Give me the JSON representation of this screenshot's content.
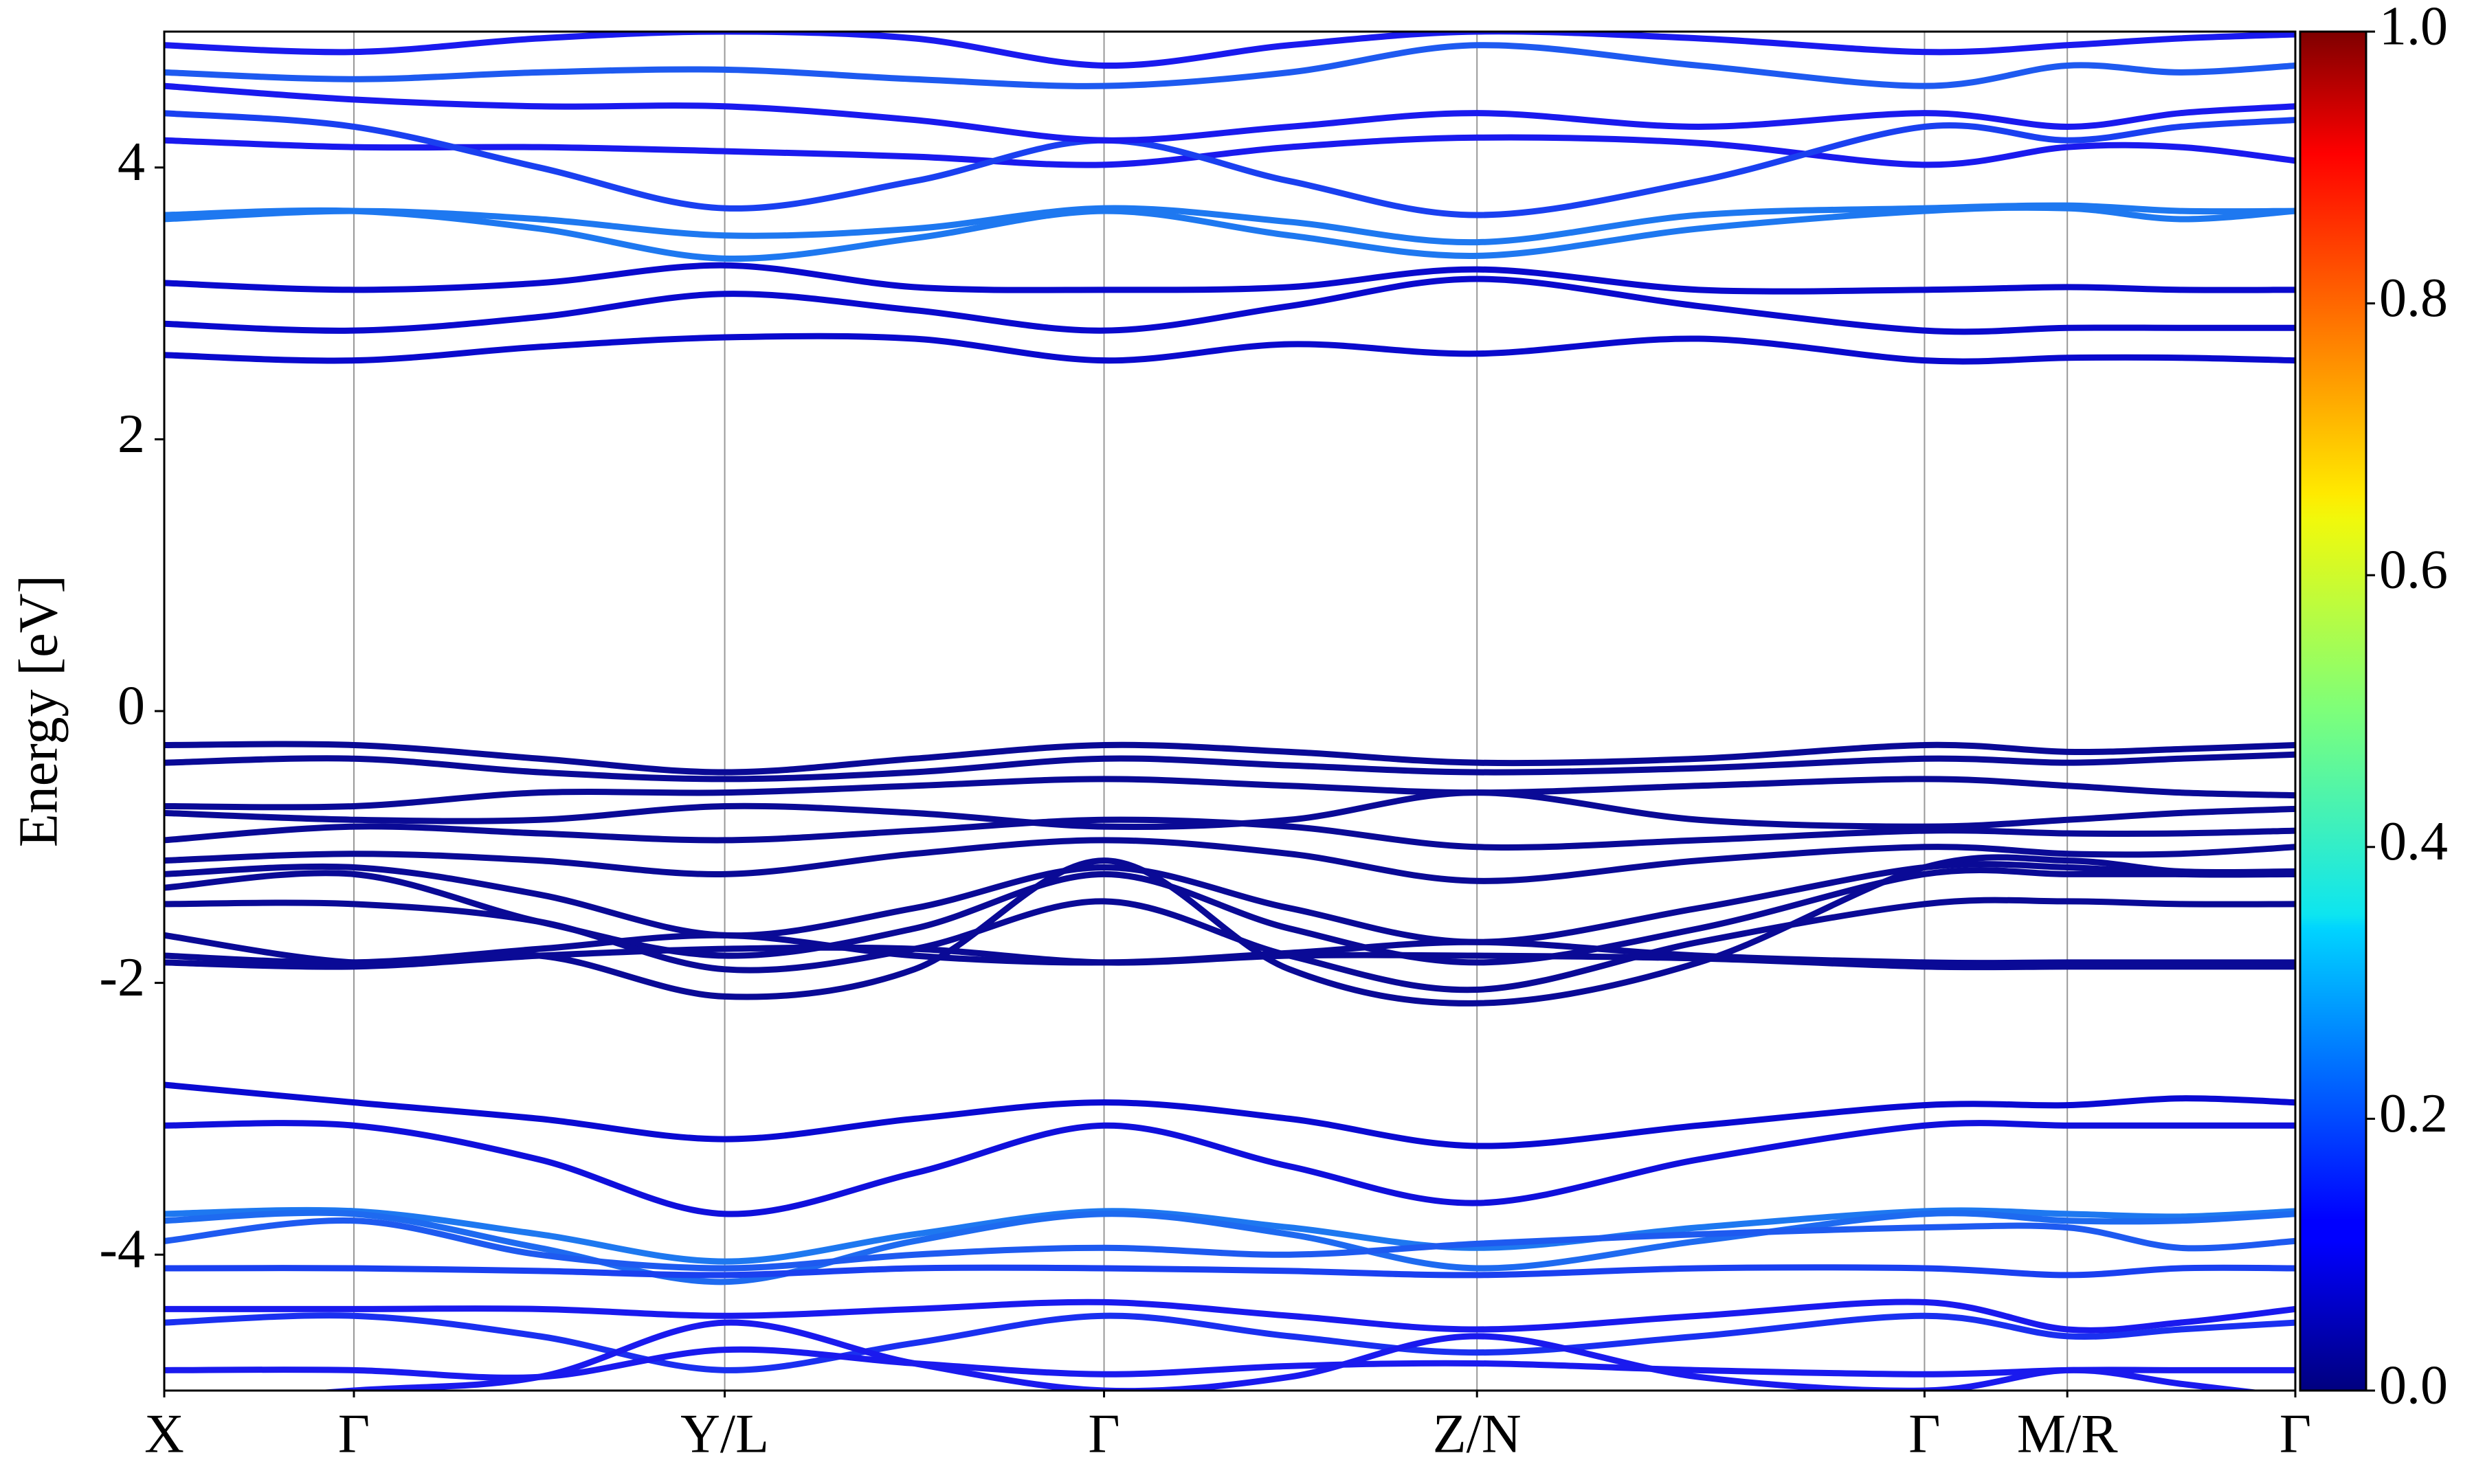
{
  "chart_data": {
    "type": "line",
    "y_label": "Energy [eV]",
    "x": [
      0,
      0.089,
      0.176,
      0.263,
      0.352,
      0.441,
      0.528,
      0.616,
      0.72,
      0.826,
      0.893,
      0.946,
      1.0
    ],
    "xlim": [
      0,
      1
    ],
    "xticks": [
      {
        "value": 0,
        "label": "X"
      },
      {
        "value": 0.089,
        "label": "Γ"
      },
      {
        "value": 0.263,
        "label": "Y/L"
      },
      {
        "value": 0.441,
        "label": "Γ"
      },
      {
        "value": 0.616,
        "label": "Z/N"
      },
      {
        "value": 0.826,
        "label": "Γ"
      },
      {
        "value": 0.893,
        "label": "M/R"
      },
      {
        "value": 1.0,
        "label": "Γ"
      }
    ],
    "ylim": [
      -5,
      5
    ],
    "yticks": [
      -4,
      -2,
      0,
      2,
      4
    ],
    "grid": "x",
    "colorbar": {
      "colormap": "jet",
      "lim": [
        0,
        1
      ],
      "ticks": [
        {
          "value": 0,
          "label": "0.0"
        },
        0.2,
        0.4,
        0.6,
        0.8,
        {
          "value": 1,
          "label": "1.0"
        }
      ]
    },
    "series": [
      {
        "color": "#0a0acd",
        "values": [
          2.62,
          2.58,
          2.68,
          2.75,
          2.74,
          2.58,
          2.7,
          2.63,
          2.74,
          2.58,
          2.6,
          2.6,
          2.58
        ]
      },
      {
        "color": "#0a0acd",
        "values": [
          2.85,
          2.8,
          2.9,
          3.07,
          2.95,
          2.8,
          2.98,
          3.18,
          2.98,
          2.8,
          2.82,
          2.82,
          2.82
        ]
      },
      {
        "color": "#0a0acd",
        "values": [
          3.15,
          3.1,
          3.15,
          3.28,
          3.12,
          3.1,
          3.12,
          3.25,
          3.1,
          3.1,
          3.12,
          3.1,
          3.1
        ]
      },
      {
        "color": "#1e78f0",
        "values": [
          3.65,
          3.68,
          3.55,
          3.33,
          3.48,
          3.68,
          3.5,
          3.35,
          3.55,
          3.68,
          3.7,
          3.62,
          3.68
        ]
      },
      {
        "color": "#1e78f0",
        "values": [
          3.62,
          3.68,
          3.62,
          3.5,
          3.55,
          3.7,
          3.6,
          3.45,
          3.65,
          3.7,
          3.72,
          3.68,
          3.68
        ]
      },
      {
        "color": "#1a1aee",
        "values": [
          4.2,
          4.15,
          4.15,
          4.12,
          4.08,
          4.02,
          4.15,
          4.22,
          4.18,
          4.02,
          4.15,
          4.15,
          4.05
        ]
      },
      {
        "color": "#1a40f0",
        "values": [
          4.4,
          4.3,
          4.0,
          3.7,
          3.9,
          4.2,
          3.9,
          3.65,
          3.9,
          4.3,
          4.2,
          4.3,
          4.35
        ]
      },
      {
        "color": "#1a1aee",
        "values": [
          4.6,
          4.5,
          4.45,
          4.45,
          4.35,
          4.2,
          4.3,
          4.4,
          4.3,
          4.4,
          4.3,
          4.4,
          4.45
        ]
      },
      {
        "color": "#1e5af0",
        "values": [
          4.7,
          4.65,
          4.7,
          4.72,
          4.65,
          4.6,
          4.7,
          4.9,
          4.75,
          4.6,
          4.75,
          4.7,
          4.75
        ]
      },
      {
        "color": "#1a1aee",
        "values": [
          4.9,
          4.85,
          4.95,
          5.0,
          4.95,
          4.75,
          4.9,
          5.0,
          4.95,
          4.85,
          4.9,
          4.95,
          4.98
        ]
      },
      {
        "color": "#0a0a96",
        "values": [
          -0.25,
          -0.25,
          -0.35,
          -0.45,
          -0.35,
          -0.25,
          -0.3,
          -0.38,
          -0.35,
          -0.25,
          -0.3,
          -0.28,
          -0.25
        ]
      },
      {
        "color": "#0a0a96",
        "values": [
          -0.38,
          -0.35,
          -0.45,
          -0.5,
          -0.45,
          -0.35,
          -0.4,
          -0.45,
          -0.42,
          -0.35,
          -0.38,
          -0.35,
          -0.32
        ]
      },
      {
        "color": "#0a0a96",
        "values": [
          -0.7,
          -0.7,
          -0.6,
          -0.6,
          -0.55,
          -0.5,
          -0.55,
          -0.6,
          -0.55,
          -0.5,
          -0.55,
          -0.6,
          -0.62
        ]
      },
      {
        "color": "#0a0a96",
        "values": [
          -0.75,
          -0.8,
          -0.8,
          -0.7,
          -0.75,
          -0.85,
          -0.8,
          -0.6,
          -0.8,
          -0.85,
          -0.8,
          -0.75,
          -0.72
        ]
      },
      {
        "color": "#0a0a96",
        "values": [
          -0.95,
          -0.85,
          -0.9,
          -0.95,
          -0.88,
          -0.8,
          -0.85,
          -1.0,
          -0.95,
          -0.88,
          -0.9,
          -0.9,
          -0.88
        ]
      },
      {
        "color": "#0a0a96",
        "values": [
          -1.1,
          -1.05,
          -1.1,
          -1.2,
          -1.05,
          -0.95,
          -1.05,
          -1.25,
          -1.1,
          -1.0,
          -1.05,
          -1.05,
          -1.0
        ]
      },
      {
        "color": "#0a0a96",
        "values": [
          -1.2,
          -1.15,
          -1.35,
          -1.65,
          -1.45,
          -1.15,
          -1.45,
          -1.7,
          -1.45,
          -1.15,
          -1.15,
          -1.2,
          -1.2
        ]
      },
      {
        "color": "#0a0a96",
        "values": [
          -1.3,
          -1.2,
          -1.55,
          -1.8,
          -1.6,
          -1.2,
          -1.6,
          -1.85,
          -1.6,
          -1.2,
          -1.2,
          -1.2,
          -1.2
        ]
      },
      {
        "color": "#0a0a96",
        "values": [
          -1.42,
          -1.42,
          -1.55,
          -1.9,
          -1.75,
          -1.4,
          -1.8,
          -2.05,
          -1.7,
          -1.42,
          -1.4,
          -1.42,
          -1.42
        ]
      },
      {
        "color": "#0a0a96",
        "values": [
          -1.65,
          -1.85,
          -1.8,
          -2.1,
          -1.9,
          -1.1,
          -1.9,
          -2.15,
          -1.85,
          -1.15,
          -1.1,
          -1.18,
          -1.18
        ]
      },
      {
        "color": "#0a0a96",
        "values": [
          -1.8,
          -1.85,
          -1.75,
          -1.65,
          -1.8,
          -1.85,
          -1.78,
          -1.7,
          -1.8,
          -1.85,
          -1.85,
          -1.85,
          -1.85
        ]
      },
      {
        "color": "#0a0a96",
        "values": [
          -1.85,
          -1.88,
          -1.8,
          -1.75,
          -1.75,
          -1.85,
          -1.8,
          -1.8,
          -1.82,
          -1.88,
          -1.88,
          -1.88,
          -1.88
        ]
      },
      {
        "color": "#0a0ad2",
        "values": [
          -2.75,
          -2.88,
          -3.0,
          -3.15,
          -3.0,
          -2.88,
          -3.0,
          -3.2,
          -3.05,
          -2.9,
          -2.9,
          -2.85,
          -2.88
        ]
      },
      {
        "color": "#1010dc",
        "values": [
          -3.05,
          -3.05,
          -3.3,
          -3.7,
          -3.4,
          -3.05,
          -3.35,
          -3.62,
          -3.3,
          -3.05,
          -3.05,
          -3.05,
          -3.05
        ]
      },
      {
        "color": "#1e78f0",
        "values": [
          -3.7,
          -3.68,
          -3.85,
          -4.05,
          -3.85,
          -3.68,
          -3.8,
          -3.95,
          -3.8,
          -3.68,
          -3.7,
          -3.72,
          -3.68
        ]
      },
      {
        "color": "#1e6af0",
        "values": [
          -3.75,
          -3.7,
          -3.95,
          -4.2,
          -3.9,
          -3.7,
          -3.85,
          -4.1,
          -3.9,
          -3.7,
          -3.75,
          -3.75,
          -3.7
        ]
      },
      {
        "color": "#1e5af0",
        "values": [
          -3.9,
          -3.75,
          -4.0,
          -4.1,
          -4.0,
          -3.95,
          -4.0,
          -3.92,
          -3.85,
          -3.8,
          -3.8,
          -3.95,
          -3.9
        ]
      },
      {
        "color": "#1a40f0",
        "values": [
          -4.1,
          -4.1,
          -4.12,
          -4.15,
          -4.1,
          -4.1,
          -4.12,
          -4.15,
          -4.1,
          -4.1,
          -4.15,
          -4.1,
          -4.1
        ]
      },
      {
        "color": "#1a1aee",
        "values": [
          -4.4,
          -4.4,
          -4.4,
          -4.45,
          -4.4,
          -4.35,
          -4.45,
          -4.55,
          -4.45,
          -4.35,
          -4.55,
          -4.5,
          -4.4
        ]
      },
      {
        "color": "#1a30f0",
        "values": [
          -4.5,
          -4.45,
          -4.6,
          -4.85,
          -4.65,
          -4.45,
          -4.6,
          -4.72,
          -4.6,
          -4.45,
          -4.6,
          -4.55,
          -4.5
        ]
      },
      {
        "color": "#1a1aee",
        "values": [
          -4.85,
          -4.85,
          -4.9,
          -4.7,
          -4.8,
          -4.88,
          -4.82,
          -4.8,
          -4.85,
          -4.88,
          -4.85,
          -4.85,
          -4.85
        ]
      },
      {
        "color": "#1a1aee",
        "values": [
          -5.1,
          -5.0,
          -4.9,
          -4.5,
          -4.8,
          -5.0,
          -4.9,
          -4.6,
          -4.9,
          -5.0,
          -4.85,
          -4.95,
          -5.05
        ]
      }
    ]
  }
}
